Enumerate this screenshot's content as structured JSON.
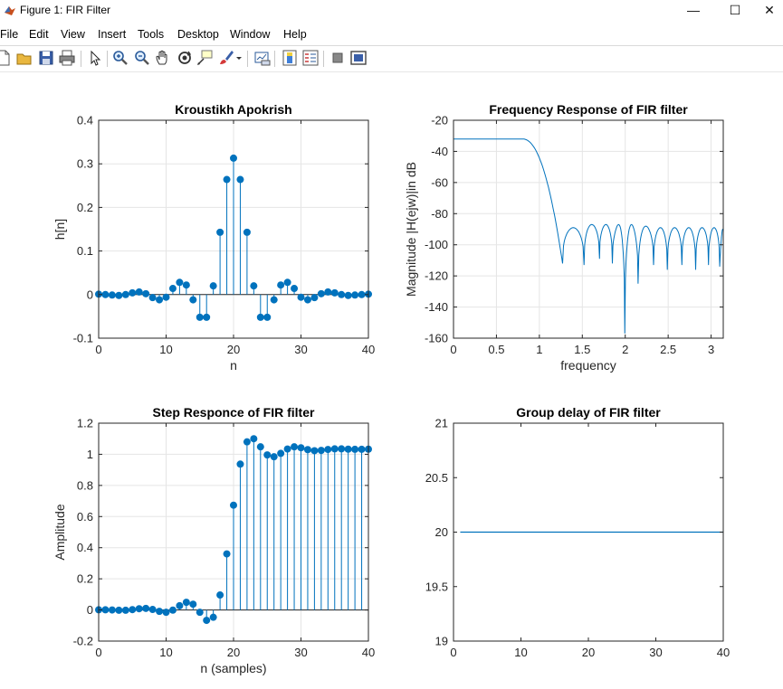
{
  "window": {
    "title": "Figure 1: FIR Filter",
    "minimize_glyph": "—",
    "maximize_glyph": "☐",
    "close_glyph": "✕"
  },
  "menu": {
    "items": [
      "File",
      "Edit",
      "View",
      "Insert",
      "Tools",
      "Desktop",
      "Window",
      "Help"
    ]
  },
  "toolbar": {
    "icons": [
      "new-figure-icon",
      "open-file-icon",
      "save-icon",
      "print-icon",
      "pointer-icon",
      "zoom-in-icon",
      "zoom-out-icon",
      "pan-icon",
      "rotate-3d-icon",
      "data-cursor-icon",
      "brush-icon",
      "dropdown-arrow-icon",
      "link-plot-icon",
      "colorbar-icon",
      "legend-icon",
      "hide-plot-tools-icon",
      "show-plot-tools-icon"
    ]
  },
  "colors": {
    "series": "#0072BD",
    "grid": "#e5e5e5",
    "axis": "#262626"
  },
  "chart_data": [
    {
      "type": "scatter",
      "title": "Kroustikh Apokrish",
      "xlabel": "n",
      "ylabel": "h[n]",
      "xlim": [
        0,
        40
      ],
      "ylim": [
        -0.1,
        0.4
      ],
      "xticks": [
        "0",
        "10",
        "20",
        "30",
        "40"
      ],
      "yticks": [
        "-0.1",
        "0",
        "0.1",
        "0.2",
        "0.3",
        "0.4"
      ],
      "grid": true,
      "stem": true,
      "x": [
        0,
        1,
        2,
        3,
        4,
        5,
        6,
        7,
        8,
        9,
        10,
        11,
        12,
        13,
        14,
        15,
        16,
        17,
        18,
        19,
        20,
        21,
        22,
        23,
        24,
        25,
        26,
        27,
        28,
        29,
        30,
        31,
        32,
        33,
        34,
        35,
        36,
        37,
        38,
        39,
        40
      ],
      "y": [
        0.001,
        0.0,
        -0.001,
        -0.002,
        0.0,
        0.004,
        0.006,
        0.002,
        -0.007,
        -0.012,
        -0.006,
        0.014,
        0.028,
        0.022,
        -0.012,
        -0.052,
        -0.052,
        0.02,
        0.143,
        0.264,
        0.313,
        0.264,
        0.143,
        0.02,
        -0.052,
        -0.052,
        -0.012,
        0.022,
        0.028,
        0.014,
        -0.006,
        -0.012,
        -0.007,
        0.002,
        0.006,
        0.004,
        0.0,
        -0.002,
        -0.001,
        0.0,
        0.001
      ]
    },
    {
      "type": "line",
      "title": "Frequency Response of FIR filter",
      "xlabel": "frequency",
      "ylabel": "Magnitude |H(ejw)|in dB",
      "xlim": [
        0,
        3.1416
      ],
      "ylim": [
        -160,
        -20
      ],
      "xticks": [
        "0",
        "0.5",
        "1",
        "1.5",
        "2",
        "2.5",
        "3"
      ],
      "yticks": [
        "-160",
        "-140",
        "-120",
        "-100",
        "-80",
        "-60",
        "-40",
        "-20"
      ],
      "grid": true,
      "passband_level_db": -32,
      "passband_edge": 0.8,
      "cutoff_null": 1.27,
      "nulls": [
        {
          "x": 1.27,
          "depth": -112
        },
        {
          "x": 1.52,
          "depth": -113
        },
        {
          "x": 1.7,
          "depth": -109
        },
        {
          "x": 1.85,
          "depth": -112
        },
        {
          "x": 1.995,
          "depth": -157
        },
        {
          "x": 2.15,
          "depth": -125
        },
        {
          "x": 2.33,
          "depth": -113
        },
        {
          "x": 2.49,
          "depth": -116
        },
        {
          "x": 2.66,
          "depth": -113
        },
        {
          "x": 2.82,
          "depth": -116
        },
        {
          "x": 2.97,
          "depth": -113
        },
        {
          "x": 3.1,
          "depth": -114
        }
      ],
      "lobe_peaks_db": [
        -89,
        -87,
        -87,
        -87,
        -87,
        -88,
        -89,
        -89,
        -89,
        -89,
        -89,
        -90
      ]
    },
    {
      "type": "scatter",
      "title": "Step Responce of FIR filter",
      "xlabel": "n (samples)",
      "ylabel": "Amplitude",
      "xlim": [
        0,
        40
      ],
      "ylim": [
        -0.2,
        1.2
      ],
      "xticks": [
        "0",
        "10",
        "20",
        "30",
        "40"
      ],
      "yticks": [
        "-0.2",
        "0",
        "0.2",
        "0.4",
        "0.6",
        "0.8",
        "1",
        "1.2"
      ],
      "grid": true,
      "stem": true,
      "x": [
        0,
        1,
        2,
        3,
        4,
        5,
        6,
        7,
        8,
        9,
        10,
        11,
        12,
        13,
        14,
        15,
        16,
        17,
        18,
        19,
        20,
        21,
        22,
        23,
        24,
        25,
        26,
        27,
        28,
        29,
        30,
        31,
        32,
        33,
        34,
        35,
        36,
        37,
        38,
        39,
        40
      ],
      "y": [
        0.001,
        0.001,
        0.0,
        -0.002,
        -0.002,
        0.002,
        0.008,
        0.01,
        0.003,
        -0.009,
        -0.015,
        -0.001,
        0.027,
        0.049,
        0.037,
        -0.015,
        -0.067,
        -0.047,
        0.096,
        0.36,
        0.673,
        0.937,
        1.08,
        1.1,
        1.048,
        0.996,
        0.984,
        1.006,
        1.034,
        1.048,
        1.042,
        1.03,
        1.023,
        1.025,
        1.031,
        1.035,
        1.035,
        1.033,
        1.032,
        1.032,
        1.033
      ]
    },
    {
      "type": "line",
      "title": "Group delay of FIR filter",
      "xlabel": "",
      "ylabel": "",
      "xlim": [
        0,
        40
      ],
      "ylim": [
        19,
        21
      ],
      "xticks": [
        "0",
        "10",
        "20",
        "30",
        "40"
      ],
      "yticks": [
        "19",
        "19.5",
        "20",
        "20.5",
        "21"
      ],
      "grid": false,
      "x": [
        1,
        40
      ],
      "y": [
        20,
        20
      ]
    }
  ]
}
